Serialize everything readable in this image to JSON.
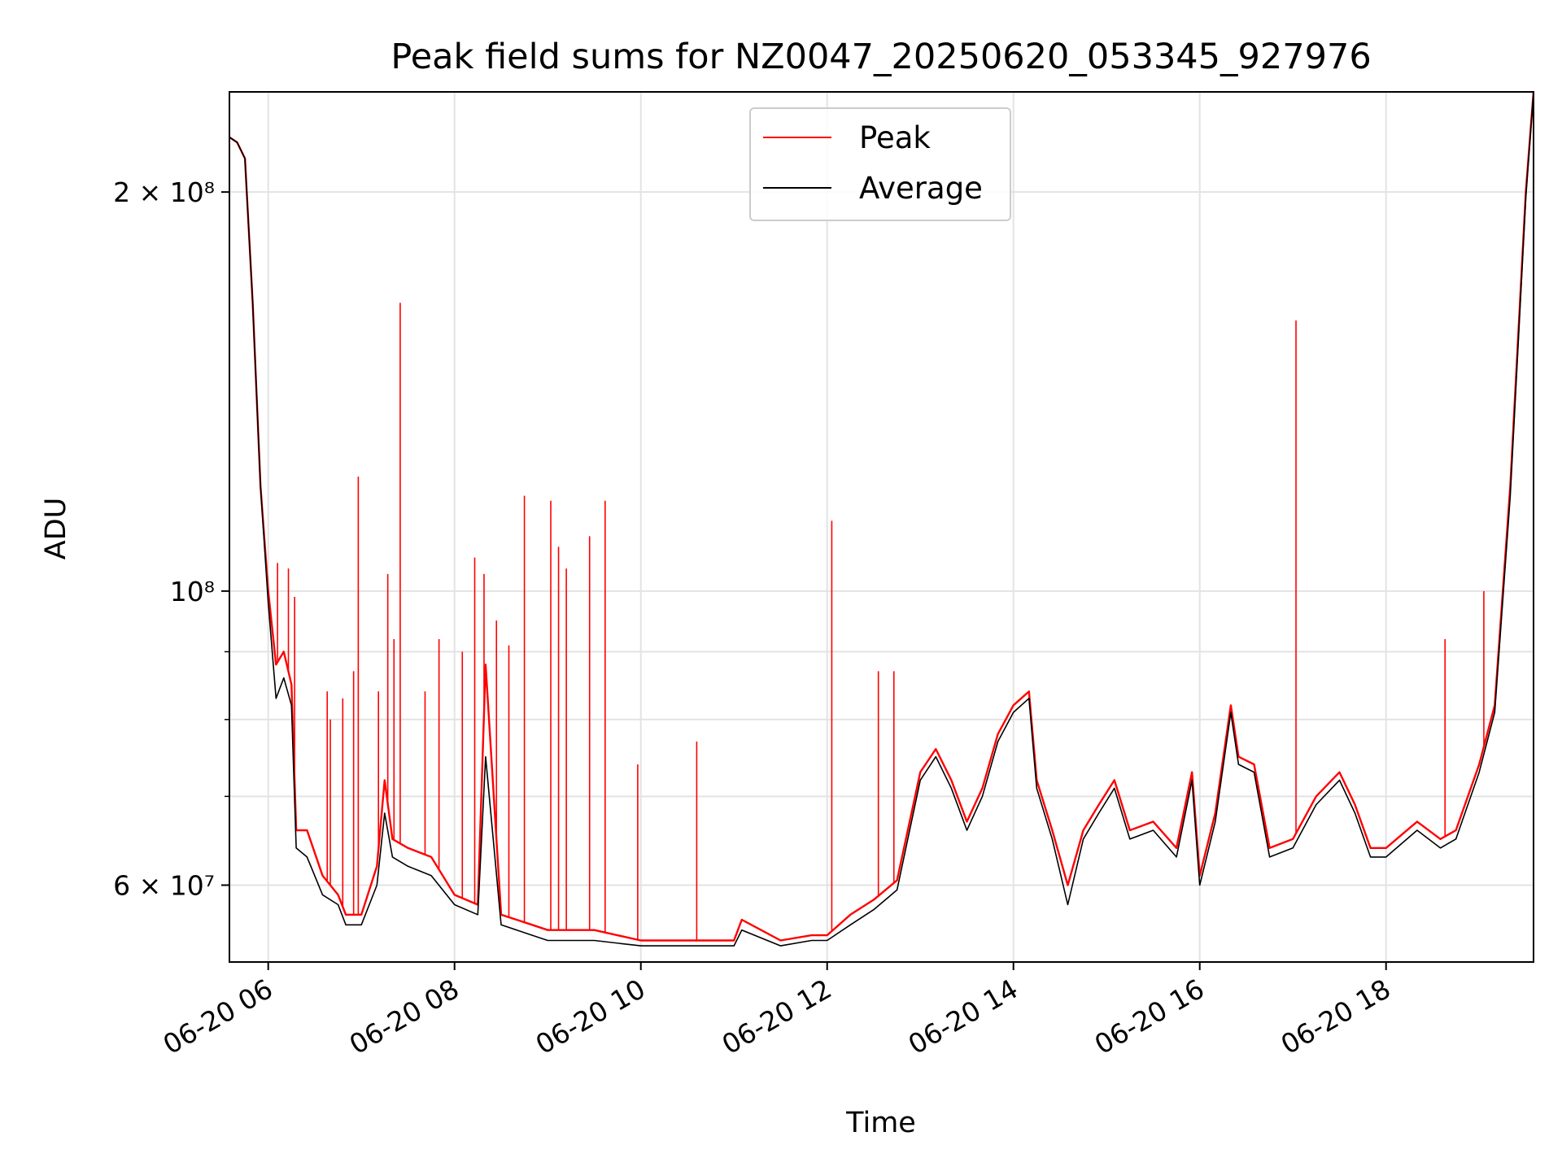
{
  "chart_data": {
    "type": "line",
    "title": "Peak field sums for NZ0047_20250620_053345_927976",
    "xlabel": "Time",
    "ylabel": "ADU",
    "yscale": "log",
    "xlim": [
      "2025-06-20 05:35",
      "2025-06-20 19:35"
    ],
    "ylim": [
      52500000,
      238000000
    ],
    "grid": true,
    "legend": {
      "position": "top-center",
      "entries": [
        "Peak",
        "Average"
      ]
    },
    "x_ticks": [
      {
        "t": "2025-06-20 06:00",
        "label": "06-20 06"
      },
      {
        "t": "2025-06-20 08:00",
        "label": "06-20 08"
      },
      {
        "t": "2025-06-20 10:00",
        "label": "06-20 10"
      },
      {
        "t": "2025-06-20 12:00",
        "label": "06-20 12"
      },
      {
        "t": "2025-06-20 14:00",
        "label": "06-20 14"
      },
      {
        "t": "2025-06-20 16:00",
        "label": "06-20 16"
      },
      {
        "t": "2025-06-20 18:00",
        "label": "06-20 18"
      }
    ],
    "y_ticks": [
      {
        "value": 60000000,
        "label": "6 × 10⁷"
      },
      {
        "value": 100000000,
        "label": "10⁸"
      },
      {
        "value": 200000000,
        "label": "2 × 10⁸"
      }
    ],
    "y_minor_ticks": [
      70000000,
      80000000,
      90000000
    ],
    "series": [
      {
        "name": "Peak",
        "color": "#ff0000",
        "x": [
          "2025-06-20 05:35",
          "2025-06-20 05:40",
          "2025-06-20 05:45",
          "2025-06-20 05:50",
          "2025-06-20 05:55",
          "2025-06-20 06:00",
          "2025-06-20 06:05",
          "2025-06-20 06:10",
          "2025-06-20 06:15",
          "2025-06-20 06:18",
          "2025-06-20 06:25",
          "2025-06-20 06:35",
          "2025-06-20 06:45",
          "2025-06-20 06:50",
          "2025-06-20 07:00",
          "2025-06-20 07:10",
          "2025-06-20 07:15",
          "2025-06-20 07:20",
          "2025-06-20 07:30",
          "2025-06-20 07:45",
          "2025-06-20 08:00",
          "2025-06-20 08:15",
          "2025-06-20 08:20",
          "2025-06-20 08:30",
          "2025-06-20 08:50",
          "2025-06-20 09:00",
          "2025-06-20 09:30",
          "2025-06-20 10:00",
          "2025-06-20 10:30",
          "2025-06-20 11:00",
          "2025-06-20 11:05",
          "2025-06-20 11:30",
          "2025-06-20 11:50",
          "2025-06-20 12:00",
          "2025-06-20 12:15",
          "2025-06-20 12:30",
          "2025-06-20 12:45",
          "2025-06-20 13:00",
          "2025-06-20 13:10",
          "2025-06-20 13:20",
          "2025-06-20 13:30",
          "2025-06-20 13:40",
          "2025-06-20 13:50",
          "2025-06-20 14:00",
          "2025-06-20 14:10",
          "2025-06-20 14:15",
          "2025-06-20 14:25",
          "2025-06-20 14:35",
          "2025-06-20 14:45",
          "2025-06-20 14:55",
          "2025-06-20 15:05",
          "2025-06-20 15:15",
          "2025-06-20 15:30",
          "2025-06-20 15:45",
          "2025-06-20 15:55",
          "2025-06-20 16:00",
          "2025-06-20 16:10",
          "2025-06-20 16:20",
          "2025-06-20 16:25",
          "2025-06-20 16:35",
          "2025-06-20 16:45",
          "2025-06-20 17:00",
          "2025-06-20 17:15",
          "2025-06-20 17:30",
          "2025-06-20 17:40",
          "2025-06-20 17:50",
          "2025-06-20 18:00",
          "2025-06-20 18:20",
          "2025-06-20 18:35",
          "2025-06-20 18:45",
          "2025-06-20 19:00",
          "2025-06-20 19:10",
          "2025-06-20 19:20",
          "2025-06-20 19:30",
          "2025-06-20 19:35"
        ],
        "y": [
          220000000,
          218000000,
          212000000,
          165000000,
          120000000,
          100000000,
          88000000,
          90000000,
          85000000,
          66000000,
          66000000,
          61000000,
          59000000,
          57000000,
          57000000,
          62000000,
          72000000,
          65000000,
          64000000,
          63000000,
          59000000,
          58000000,
          88000000,
          57000000,
          56000000,
          55500000,
          55500000,
          54500000,
          54500000,
          54500000,
          56500000,
          54500000,
          55000000,
          55000000,
          57000000,
          58500000,
          60500000,
          73000000,
          76000000,
          72000000,
          67000000,
          71000000,
          78000000,
          82000000,
          84000000,
          72000000,
          66000000,
          60000000,
          66000000,
          69000000,
          72000000,
          66000000,
          67000000,
          64000000,
          73000000,
          61000000,
          68000000,
          82000000,
          75000000,
          74000000,
          64000000,
          65000000,
          70000000,
          73000000,
          69000000,
          64000000,
          64000000,
          67000000,
          65000000,
          66000000,
          74000000,
          82000000,
          120000000,
          200000000,
          238000000
        ]
      },
      {
        "name": "Average",
        "color": "#000000",
        "x": [
          "2025-06-20 05:35",
          "2025-06-20 05:40",
          "2025-06-20 05:45",
          "2025-06-20 05:50",
          "2025-06-20 05:55",
          "2025-06-20 06:00",
          "2025-06-20 06:05",
          "2025-06-20 06:10",
          "2025-06-20 06:15",
          "2025-06-20 06:18",
          "2025-06-20 06:25",
          "2025-06-20 06:35",
          "2025-06-20 06:45",
          "2025-06-20 06:50",
          "2025-06-20 07:00",
          "2025-06-20 07:10",
          "2025-06-20 07:15",
          "2025-06-20 07:20",
          "2025-06-20 07:30",
          "2025-06-20 07:45",
          "2025-06-20 08:00",
          "2025-06-20 08:15",
          "2025-06-20 08:20",
          "2025-06-20 08:30",
          "2025-06-20 08:50",
          "2025-06-20 09:00",
          "2025-06-20 09:30",
          "2025-06-20 10:00",
          "2025-06-20 10:30",
          "2025-06-20 11:00",
          "2025-06-20 11:05",
          "2025-06-20 11:30",
          "2025-06-20 11:50",
          "2025-06-20 12:00",
          "2025-06-20 12:15",
          "2025-06-20 12:30",
          "2025-06-20 12:45",
          "2025-06-20 13:00",
          "2025-06-20 13:10",
          "2025-06-20 13:20",
          "2025-06-20 13:30",
          "2025-06-20 13:40",
          "2025-06-20 13:50",
          "2025-06-20 14:00",
          "2025-06-20 14:10",
          "2025-06-20 14:15",
          "2025-06-20 14:25",
          "2025-06-20 14:35",
          "2025-06-20 14:45",
          "2025-06-20 14:55",
          "2025-06-20 15:05",
          "2025-06-20 15:15",
          "2025-06-20 15:30",
          "2025-06-20 15:45",
          "2025-06-20 15:55",
          "2025-06-20 16:00",
          "2025-06-20 16:10",
          "2025-06-20 16:20",
          "2025-06-20 16:25",
          "2025-06-20 16:35",
          "2025-06-20 16:45",
          "2025-06-20 17:00",
          "2025-06-20 17:15",
          "2025-06-20 17:30",
          "2025-06-20 17:40",
          "2025-06-20 17:50",
          "2025-06-20 18:00",
          "2025-06-20 18:20",
          "2025-06-20 18:35",
          "2025-06-20 18:45",
          "2025-06-20 19:00",
          "2025-06-20 19:10",
          "2025-06-20 19:20",
          "2025-06-20 19:30",
          "2025-06-20 19:35"
        ],
        "y": [
          220000000,
          218000000,
          212000000,
          165000000,
          120000000,
          98000000,
          83000000,
          86000000,
          82000000,
          64000000,
          63000000,
          59000000,
          58000000,
          56000000,
          56000000,
          60000000,
          68000000,
          63000000,
          62000000,
          61000000,
          58000000,
          57000000,
          75000000,
          56000000,
          55000000,
          54500000,
          54500000,
          54000000,
          54000000,
          54000000,
          55500000,
          54000000,
          54500000,
          54500000,
          56000000,
          57500000,
          59500000,
          72000000,
          75000000,
          71000000,
          66000000,
          70000000,
          77000000,
          81000000,
          83000000,
          71000000,
          65000000,
          58000000,
          65000000,
          68000000,
          71000000,
          65000000,
          66000000,
          63000000,
          72000000,
          60000000,
          67000000,
          81000000,
          74000000,
          73000000,
          63000000,
          64000000,
          69000000,
          72000000,
          68000000,
          63000000,
          63000000,
          66000000,
          64000000,
          65000000,
          73000000,
          81000000,
          118000000,
          198000000,
          238000000
        ]
      }
    ],
    "spikes": [
      {
        "series": "Peak",
        "t": "2025-06-20 06:06",
        "y": 105000000
      },
      {
        "series": "Peak",
        "t": "2025-06-20 06:13",
        "y": 104000000
      },
      {
        "series": "Peak",
        "t": "2025-06-20 06:17",
        "y": 99000000
      },
      {
        "series": "Peak",
        "t": "2025-06-20 06:38",
        "y": 84000000
      },
      {
        "series": "Peak",
        "t": "2025-06-20 06:40",
        "y": 80000000
      },
      {
        "series": "Peak",
        "t": "2025-06-20 06:48",
        "y": 83000000
      },
      {
        "series": "Peak",
        "t": "2025-06-20 06:55",
        "y": 87000000
      },
      {
        "series": "Peak",
        "t": "2025-06-20 06:58",
        "y": 122000000
      },
      {
        "series": "Peak",
        "t": "2025-06-20 07:11",
        "y": 84000000
      },
      {
        "series": "Peak",
        "t": "2025-06-20 07:17",
        "y": 103000000
      },
      {
        "series": "Peak",
        "t": "2025-06-20 07:21",
        "y": 92000000
      },
      {
        "series": "Peak",
        "t": "2025-06-20 07:25",
        "y": 165000000
      },
      {
        "series": "Peak",
        "t": "2025-06-20 07:41",
        "y": 84000000
      },
      {
        "series": "Peak",
        "t": "2025-06-20 07:50",
        "y": 92000000
      },
      {
        "series": "Peak",
        "t": "2025-06-20 08:05",
        "y": 90000000
      },
      {
        "series": "Peak",
        "t": "2025-06-20 08:13",
        "y": 106000000
      },
      {
        "series": "Peak",
        "t": "2025-06-20 08:19",
        "y": 103000000
      },
      {
        "series": "Peak",
        "t": "2025-06-20 08:27",
        "y": 95000000
      },
      {
        "series": "Peak",
        "t": "2025-06-20 08:35",
        "y": 91000000
      },
      {
        "series": "Peak",
        "t": "2025-06-20 08:45",
        "y": 118000000
      },
      {
        "series": "Peak",
        "t": "2025-06-20 09:02",
        "y": 117000000
      },
      {
        "series": "Peak",
        "t": "2025-06-20 09:07",
        "y": 108000000
      },
      {
        "series": "Peak",
        "t": "2025-06-20 09:12",
        "y": 104000000
      },
      {
        "series": "Peak",
        "t": "2025-06-20 09:27",
        "y": 110000000
      },
      {
        "series": "Peak",
        "t": "2025-06-20 09:37",
        "y": 117000000
      },
      {
        "series": "Peak",
        "t": "2025-06-20 09:58",
        "y": 74000000
      },
      {
        "series": "Peak",
        "t": "2025-06-20 10:36",
        "y": 77000000
      },
      {
        "series": "Peak",
        "t": "2025-06-20 12:03",
        "y": 113000000
      },
      {
        "series": "Peak",
        "t": "2025-06-20 12:33",
        "y": 87000000
      },
      {
        "series": "Peak",
        "t": "2025-06-20 12:43",
        "y": 87000000
      },
      {
        "series": "Peak",
        "t": "2025-06-20 17:02",
        "y": 160000000
      },
      {
        "series": "Peak",
        "t": "2025-06-20 18:38",
        "y": 92000000
      },
      {
        "series": "Peak",
        "t": "2025-06-20 19:03",
        "y": 100000000
      }
    ]
  }
}
